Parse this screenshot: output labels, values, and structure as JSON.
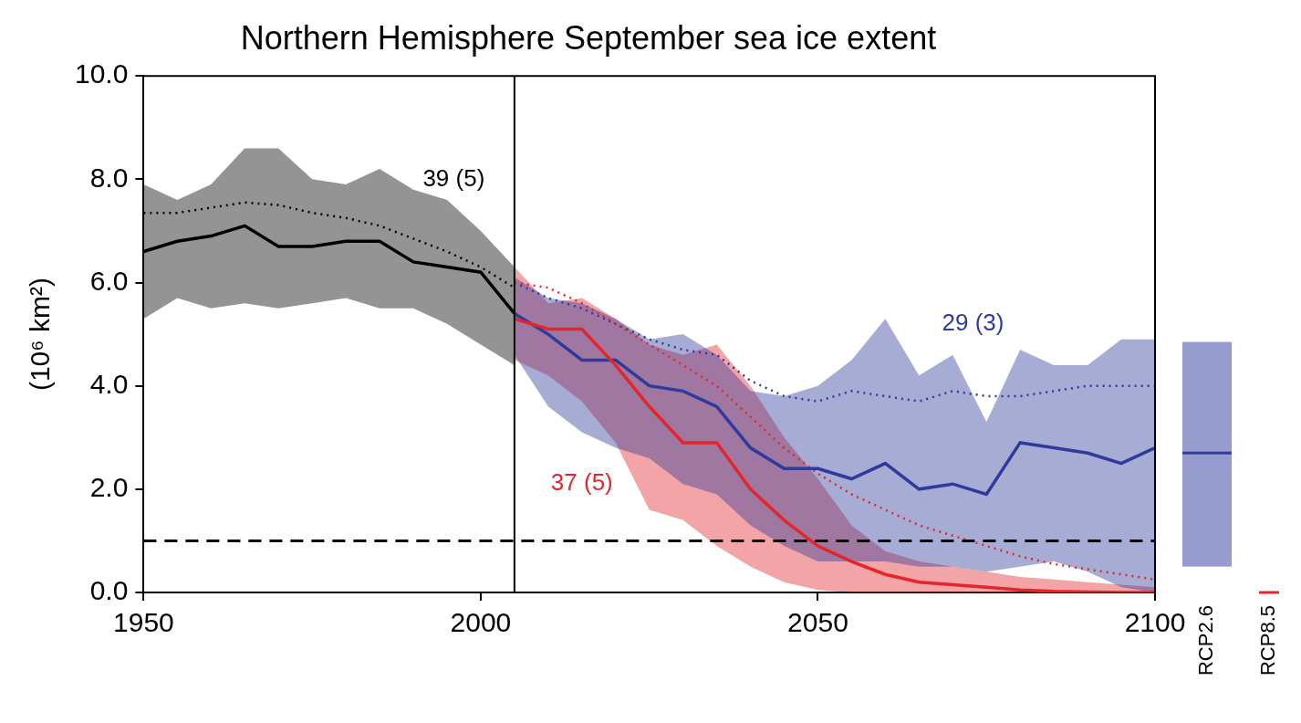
{
  "chart_data": {
    "type": "line",
    "title": "Northern Hemisphere September sea ice extent",
    "y_label": "(10⁶ km²)",
    "xlim": [
      1950,
      2100
    ],
    "xticks": [
      1950,
      2000,
      2050,
      2100
    ],
    "ylim": [
      0,
      10
    ],
    "yticks": [
      {
        "value": 0,
        "label": "0.0"
      },
      {
        "value": 2,
        "label": "2.0"
      },
      {
        "value": 4,
        "label": "4.0"
      },
      {
        "value": 6,
        "label": "6.0"
      },
      {
        "value": 8,
        "label": "8.0"
      },
      {
        "value": 10,
        "label": "10.0"
      }
    ],
    "grid": false,
    "series": [
      {
        "color": "#000000",
        "x": [
          1950,
          1955,
          1960,
          1965,
          1970,
          1975,
          1980,
          1985,
          1990,
          1995,
          2000,
          2005
        ],
        "values": [
          6.6,
          6.8,
          6.9,
          7.1,
          6.7,
          6.7,
          6.8,
          6.8,
          6.4,
          6.3,
          6.2,
          5.4
        ],
        "dotted_values": [
          7.35,
          7.35,
          7.45,
          7.55,
          7.5,
          7.35,
          7.25,
          7.1,
          6.85,
          6.6,
          6.3,
          5.9
        ],
        "high": [
          7.9,
          7.6,
          7.9,
          8.6,
          8.6,
          8.0,
          7.9,
          8.2,
          7.8,
          7.6,
          7.0,
          6.3
        ],
        "low": [
          5.3,
          5.7,
          5.5,
          5.6,
          5.5,
          5.6,
          5.7,
          5.5,
          5.5,
          5.2,
          4.8,
          4.4
        ]
      },
      {
        "name": "RCP8.5",
        "color": "#e3262b",
        "x": [
          2005,
          2010,
          2015,
          2020,
          2025,
          2030,
          2035,
          2040,
          2045,
          2050,
          2055,
          2060,
          2065,
          2070,
          2075,
          2080,
          2085,
          2090,
          2095,
          2100
        ],
        "values": [
          5.3,
          5.1,
          5.1,
          4.4,
          3.6,
          2.9,
          2.9,
          2.0,
          1.4,
          0.9,
          0.6,
          0.35,
          0.2,
          0.15,
          0.1,
          0.05,
          0.02,
          0.01,
          0.0,
          0.0
        ],
        "dotted_values": [
          6.0,
          5.9,
          5.6,
          5.2,
          4.8,
          4.4,
          4.0,
          3.4,
          2.8,
          2.3,
          1.9,
          1.6,
          1.3,
          1.1,
          0.9,
          0.7,
          0.55,
          0.45,
          0.35,
          0.25
        ],
        "high": [
          6.3,
          5.6,
          5.7,
          5.3,
          4.8,
          4.6,
          4.8,
          4.0,
          3.0,
          2.2,
          1.3,
          0.8,
          0.6,
          0.5,
          0.4,
          0.3,
          0.25,
          0.2,
          0.15,
          0.1
        ],
        "low": [
          4.5,
          4.2,
          3.7,
          2.9,
          1.6,
          1.4,
          0.9,
          0.5,
          0.2,
          0.05,
          0,
          0,
          0,
          0,
          0,
          0,
          0,
          0,
          0,
          0
        ],
        "end_range": [
          0,
          0
        ],
        "end_mean": 0
      },
      {
        "name": "RCP2.6",
        "color": "#2e3a9c",
        "x": [
          2005,
          2010,
          2015,
          2020,
          2025,
          2030,
          2035,
          2040,
          2045,
          2050,
          2055,
          2060,
          2065,
          2070,
          2075,
          2080,
          2085,
          2090,
          2095,
          2100
        ],
        "values": [
          5.4,
          5.0,
          4.5,
          4.5,
          4.0,
          3.9,
          3.6,
          2.8,
          2.4,
          2.4,
          2.2,
          2.5,
          2.0,
          2.1,
          1.9,
          2.9,
          2.8,
          2.7,
          2.5,
          2.8
        ],
        "dotted_values": [
          6.0,
          5.7,
          5.5,
          5.2,
          4.9,
          4.7,
          4.6,
          4.1,
          3.8,
          3.7,
          3.9,
          3.8,
          3.7,
          3.9,
          3.8,
          3.8,
          3.9,
          4.0,
          4.0,
          4.0
        ],
        "high": [
          6.1,
          5.7,
          5.6,
          5.3,
          4.9,
          5.0,
          4.6,
          3.9,
          3.8,
          4.0,
          4.5,
          5.3,
          4.2,
          4.6,
          3.3,
          4.7,
          4.4,
          4.4,
          4.9,
          4.9
        ],
        "low": [
          4.6,
          3.6,
          3.1,
          2.8,
          2.6,
          2.1,
          1.9,
          1.3,
          0.9,
          0.6,
          0.6,
          0.6,
          0.5,
          0.5,
          0.4,
          0.5,
          0.6,
          0.4,
          0.1,
          0.0
        ],
        "end_range": [
          0.5,
          4.85
        ],
        "end_mean": 2.7
      }
    ],
    "reference_lines": [
      {
        "axis": "y",
        "value": 1.0,
        "color": "#000000",
        "line_style": "dashed"
      },
      {
        "axis": "x",
        "value": 2005,
        "color": "#000000",
        "line_style": "solid"
      }
    ],
    "annotations": [
      {
        "text": "39 (5)",
        "x": 1996,
        "y": 8.0,
        "color": "#000000"
      },
      {
        "text": "29 (3)",
        "x": 2073,
        "y": 5.2,
        "color": "#2e3a9c"
      },
      {
        "text": "37 (5)",
        "x": 2015,
        "y": 2.1,
        "color": "#e3262b"
      }
    ]
  }
}
